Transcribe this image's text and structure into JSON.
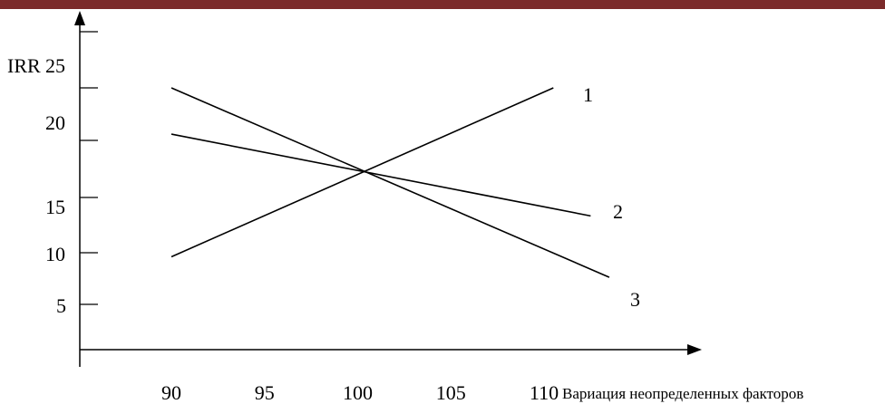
{
  "header_bar_color": "#7b2a2a",
  "chart_data": {
    "type": "line",
    "title": "",
    "ylabel": "IRR",
    "xlabel": "Вариация неопределенных факторов",
    "x_ticks": [
      "90",
      "95",
      "100",
      "105",
      "110"
    ],
    "y_ticks": [
      "5",
      "10",
      "15",
      "20",
      "25"
    ],
    "series": [
      {
        "name": "1",
        "x": [
          90,
          110.5
        ],
        "y": [
          9.3,
          25.0
        ]
      },
      {
        "name": "2",
        "x": [
          90,
          112.5
        ],
        "y": [
          20.7,
          13.1
        ]
      },
      {
        "name": "3",
        "x": [
          90,
          113.5
        ],
        "y": [
          25.0,
          7.4
        ]
      }
    ],
    "xlim": [
      86,
      116
    ],
    "ylim": [
      0,
      30
    ],
    "grid": false,
    "legend": "inline"
  }
}
